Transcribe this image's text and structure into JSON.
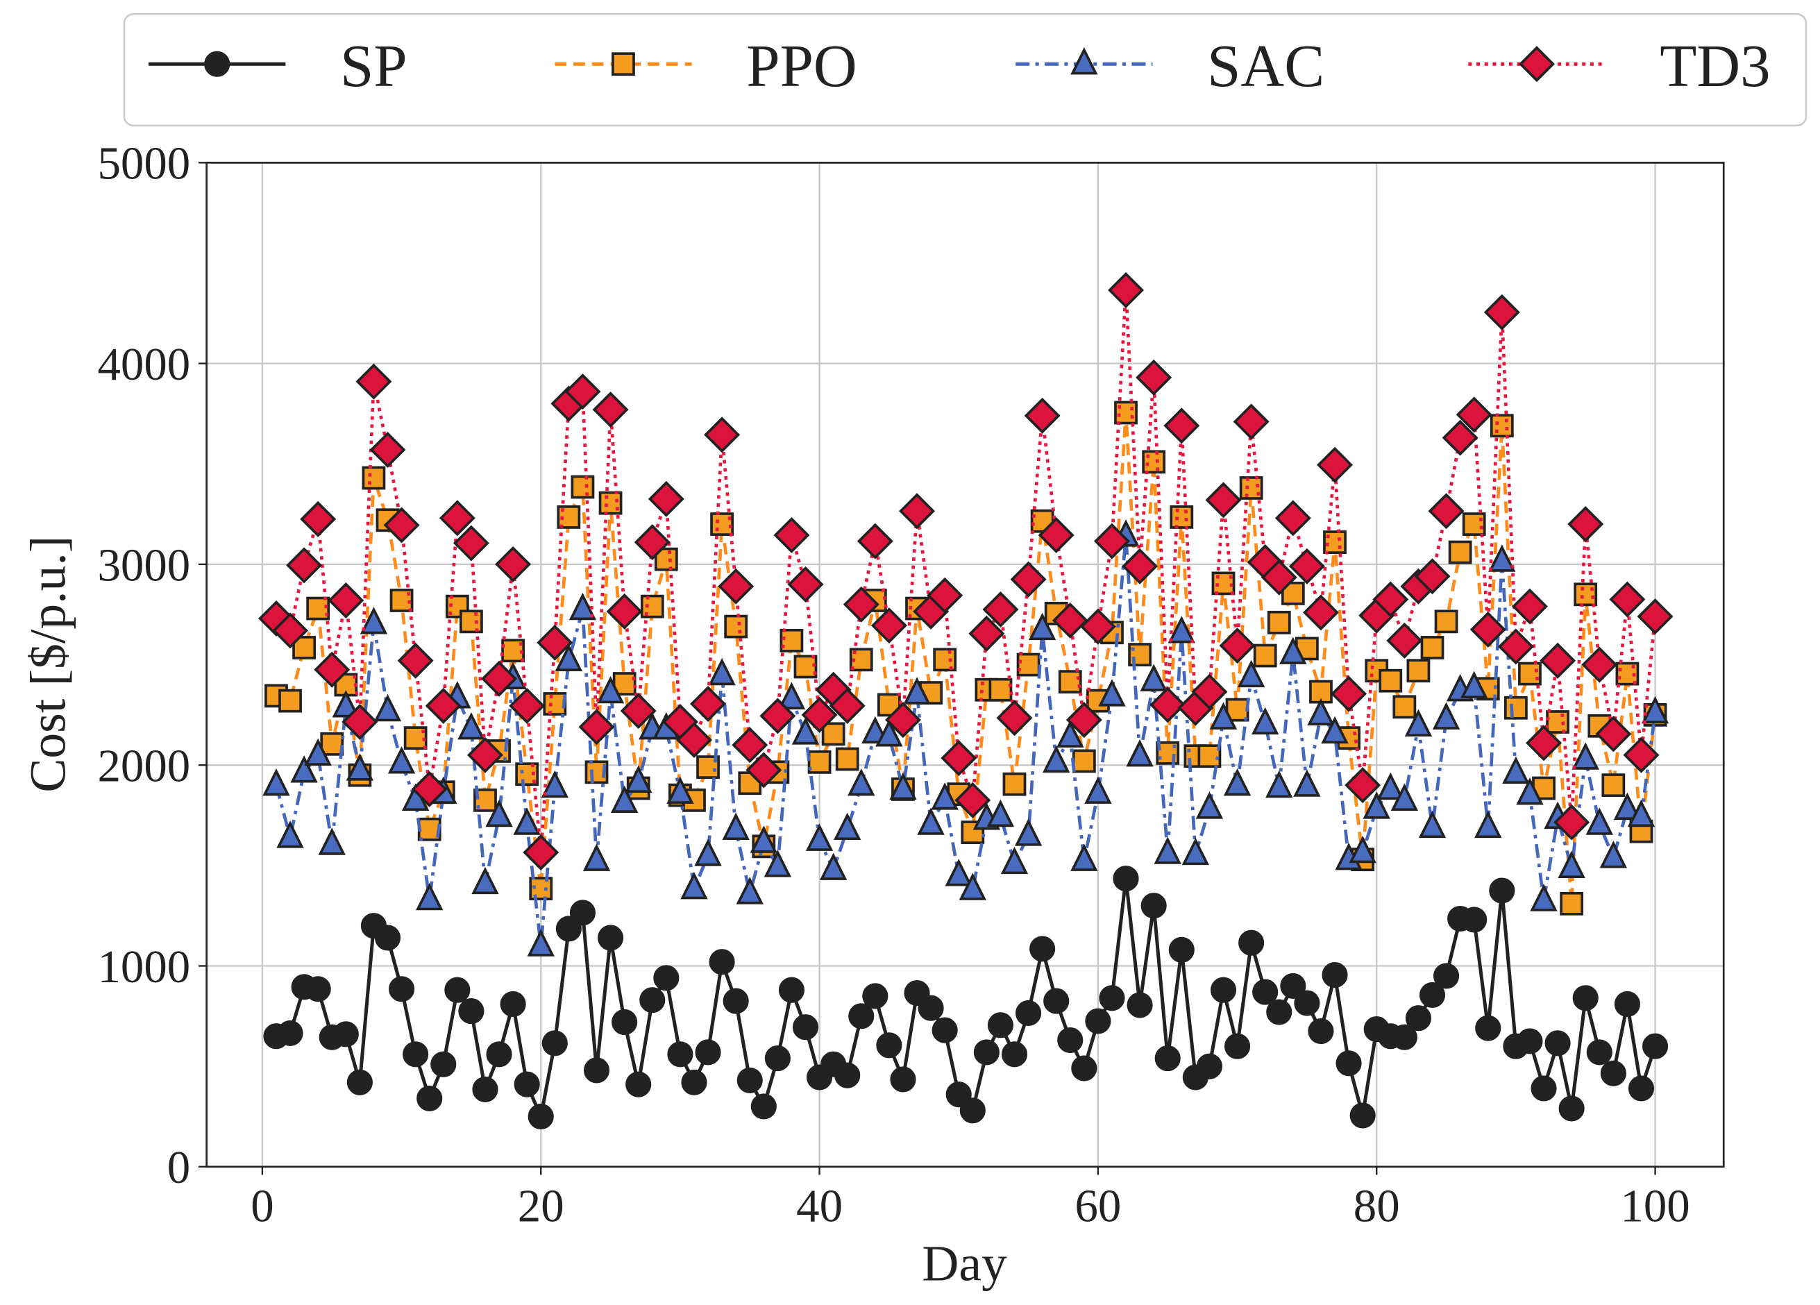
{
  "chart_data": {
    "type": "line",
    "title": "",
    "xlabel": "Day",
    "ylabel": "Cost [$/p.u.]",
    "xlim": [
      -4,
      105
    ],
    "ylim": [
      0,
      5000
    ],
    "xticks": [
      "0",
      "20",
      "40",
      "60",
      "80",
      "100"
    ],
    "yticks": [
      "0",
      "1000",
      "2000",
      "3000",
      "4000",
      "5000"
    ],
    "grid": true,
    "legend_position": "top, above plot",
    "x": [
      1,
      2,
      3,
      4,
      5,
      6,
      7,
      8,
      9,
      10,
      11,
      12,
      13,
      14,
      15,
      16,
      17,
      18,
      19,
      20,
      21,
      22,
      23,
      24,
      25,
      26,
      27,
      28,
      29,
      30,
      31,
      32,
      33,
      34,
      35,
      36,
      37,
      38,
      39,
      40,
      41,
      42,
      43,
      44,
      45,
      46,
      47,
      48,
      49,
      50,
      51,
      52,
      53,
      54,
      55,
      56,
      57,
      58,
      59,
      60,
      61,
      62,
      63,
      64,
      65,
      66,
      67,
      68,
      69,
      70,
      71,
      72,
      73,
      74,
      75,
      76,
      77,
      78,
      79,
      80,
      81,
      82,
      83,
      84,
      85,
      86,
      87,
      88,
      89,
      90,
      91,
      92,
      93,
      94,
      95,
      96,
      97,
      98,
      99,
      100
    ],
    "series": [
      {
        "name": "SP",
        "color": "#222222",
        "marker": "circle",
        "dash": "solid",
        "values": [
          650,
          665,
          895,
          885,
          645,
          660,
          420,
          1200,
          1140,
          885,
          560,
          340,
          510,
          880,
          775,
          385,
          560,
          810,
          410,
          250,
          615,
          1185,
          1265,
          480,
          1140,
          720,
          410,
          830,
          940,
          560,
          420,
          570,
          1020,
          825,
          430,
          300,
          540,
          880,
          695,
          445,
          510,
          455,
          750,
          850,
          605,
          435,
          865,
          790,
          680,
          360,
          280,
          570,
          705,
          560,
          765,
          1085,
          825,
          630,
          490,
          725,
          840,
          1435,
          805,
          1300,
          540,
          1080,
          445,
          500,
          880,
          600,
          1115,
          870,
          770,
          900,
          815,
          675,
          955,
          515,
          255,
          685,
          650,
          645,
          740,
          855,
          950,
          1235,
          1230,
          690,
          1375,
          600,
          625,
          390,
          615,
          290,
          840,
          570,
          465,
          810,
          390,
          600
        ]
      },
      {
        "name": "PPO",
        "color": "#ff8c1a",
        "marker": "square",
        "dash": "dashed",
        "values": [
          2345,
          2320,
          2585,
          2780,
          2105,
          2400,
          1950,
          3430,
          3220,
          2820,
          2135,
          1680,
          1865,
          2790,
          2715,
          1825,
          2070,
          2570,
          1955,
          1385,
          2305,
          3235,
          3385,
          1965,
          3305,
          2405,
          1885,
          2790,
          3025,
          1850,
          1825,
          1990,
          3200,
          2690,
          1910,
          1595,
          1965,
          2620,
          2490,
          2015,
          2155,
          2030,
          2525,
          2820,
          2300,
          1880,
          2780,
          2360,
          2525,
          1855,
          1665,
          2375,
          2375,
          1905,
          2500,
          3215,
          2755,
          2415,
          2020,
          2320,
          2660,
          3755,
          2550,
          3510,
          2060,
          3235,
          2045,
          2045,
          2905,
          2275,
          3380,
          2545,
          2710,
          2855,
          2580,
          2365,
          3110,
          2135,
          1530,
          2470,
          2420,
          2290,
          2470,
          2585,
          2715,
          3060,
          3200,
          2380,
          3690,
          2285,
          2455,
          1885,
          2215,
          1310,
          2850,
          2195,
          1900,
          2455,
          1670,
          2250
        ]
      },
      {
        "name": "SAC",
        "color": "#4466bb",
        "marker": "triangle",
        "dash": "dashdot",
        "values": [
          1900,
          1640,
          1965,
          2050,
          1605,
          2290,
          1975,
          2705,
          2270,
          2010,
          1825,
          1330,
          1860,
          2335,
          2180,
          1410,
          1745,
          2430,
          1705,
          1100,
          1890,
          2520,
          2775,
          1525,
          2360,
          1815,
          1915,
          2180,
          2180,
          1860,
          1385,
          1550,
          2450,
          1680,
          1360,
          1615,
          1495,
          2330,
          2155,
          1625,
          1480,
          1680,
          1900,
          2160,
          2145,
          1880,
          2355,
          1705,
          1830,
          1450,
          1380,
          1730,
          1745,
          1510,
          1650,
          2675,
          2015,
          2140,
          1525,
          1860,
          2345,
          3140,
          2045,
          2420,
          1560,
          2660,
          1555,
          1785,
          2230,
          1900,
          2440,
          2205,
          1890,
          2555,
          1895,
          2250,
          2160,
          1530,
          1565,
          1785,
          1880,
          1825,
          2195,
          1690,
          2230,
          2370,
          2385,
          1690,
          3015,
          1960,
          1855,
          1325,
          1735,
          1490,
          2030,
          1705,
          1540,
          1780,
          1745,
          2260
        ]
      },
      {
        "name": "TD3",
        "color": "#e8173f",
        "marker": "diamond",
        "dash": "dotted",
        "values": [
          2730,
          2670,
          2995,
          3225,
          2475,
          2820,
          2215,
          3910,
          3570,
          3195,
          2520,
          1880,
          2295,
          3230,
          3105,
          2050,
          2430,
          3000,
          2295,
          1565,
          2610,
          3800,
          3860,
          2190,
          3770,
          2765,
          2270,
          3110,
          3325,
          2215,
          2125,
          2305,
          3645,
          2890,
          2100,
          1975,
          2245,
          3145,
          2900,
          2250,
          2375,
          2295,
          2800,
          3115,
          2695,
          2225,
          3265,
          2765,
          2845,
          2035,
          1825,
          2655,
          2775,
          2235,
          2925,
          3740,
          3145,
          2720,
          2225,
          2690,
          3115,
          4365,
          2990,
          3930,
          2300,
          3690,
          2285,
          2365,
          3320,
          2595,
          3710,
          3010,
          2935,
          3230,
          2990,
          2760,
          3495,
          2355,
          1900,
          2745,
          2825,
          2620,
          2890,
          2940,
          3265,
          3630,
          3745,
          2675,
          4255,
          2590,
          2790,
          2110,
          2520,
          1715,
          3200,
          2500,
          2155,
          2825,
          2050,
          2740
        ]
      }
    ]
  }
}
